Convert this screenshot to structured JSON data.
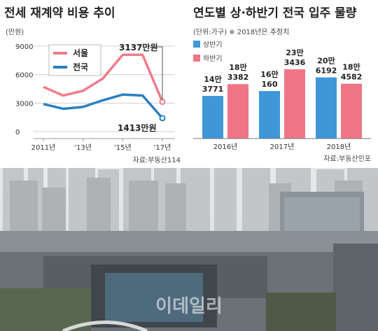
{
  "chart_data": [
    {
      "type": "line",
      "title": "전세 재계약 비용 추이",
      "ylabel": "(만원)",
      "ylim": [
        0,
        9000
      ],
      "yticks": [
        "0",
        "3000",
        "6000",
        "9000"
      ],
      "x_ticks": [
        "2011년",
        "'13년",
        "'15년",
        "'17년"
      ],
      "x": [
        "2011",
        "2012",
        "2013",
        "2014",
        "2015",
        "2016",
        "2017"
      ],
      "series": [
        {
          "name": "서울",
          "color": "#ee7d8b",
          "values": [
            4700,
            3800,
            4300,
            5600,
            8100,
            8100,
            3137
          ]
        },
        {
          "name": "전국",
          "color": "#2a7fc0",
          "values": [
            2900,
            2400,
            2600,
            3300,
            3900,
            3800,
            1413
          ]
        }
      ],
      "annotations": [
        "3137만원",
        "1413만원"
      ],
      "legend_position": "top-left",
      "source": "자료:부동산114"
    },
    {
      "type": "bar",
      "title": "연도별 상·하반기 전국 입주 물량",
      "subtitle": "(단위:가구)  ※ 2018년은 추정치",
      "categories": [
        "2016년",
        "2017년",
        "2018년"
      ],
      "series": [
        {
          "name": "상반기",
          "color": "#3f97d8",
          "values": [
            143771,
            160160,
            206192
          ],
          "labels": [
            [
              "14만",
              "3771"
            ],
            [
              "16만",
              "160"
            ],
            [
              "20만",
              "6192"
            ]
          ]
        },
        {
          "name": "하반기",
          "color": "#ef7585",
          "values": [
            183382,
            233436,
            184582
          ],
          "labels": [
            [
              "18만",
              "3382"
            ],
            [
              "23만",
              "3436"
            ],
            [
              "18만",
              "4582"
            ]
          ]
        }
      ],
      "ylim": [
        0,
        250000
      ],
      "legend_position": "top-left",
      "source": "자료:부동산인포"
    }
  ],
  "watermark": "이데일리"
}
